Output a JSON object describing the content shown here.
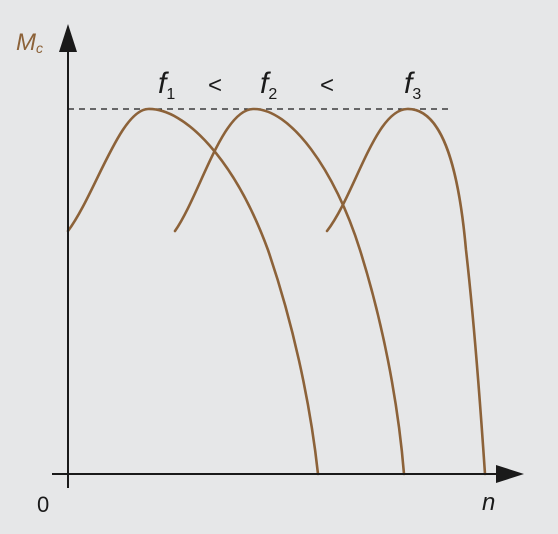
{
  "axes": {
    "y_label": "M",
    "y_label_sub": "c",
    "x_label": "n",
    "origin_label": "0"
  },
  "frequency_labels": [
    {
      "symbol": "f",
      "sub": "1"
    },
    {
      "symbol": "f",
      "sub": "2"
    },
    {
      "symbol": "f",
      "sub": "3"
    }
  ],
  "comparators": [
    "<",
    "<"
  ],
  "colors": {
    "curve": "#8c6239",
    "axis": "#1a1a1a",
    "y_label": "#8c6239",
    "background": "#e6e7e8",
    "dashed_line": "#1a1a1a"
  }
}
